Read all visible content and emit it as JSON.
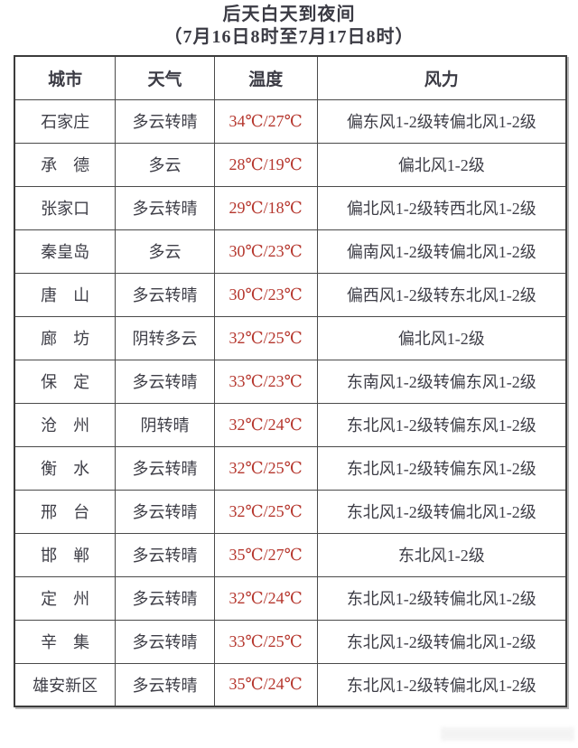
{
  "colors": {
    "temperature": "#b5362d",
    "text": "#3e3e47"
  },
  "chart_data": {
    "type": "table",
    "title": "后天白天到夜间",
    "subtitle": "（7月16日8时至7月17日8时）",
    "columns": [
      "城市",
      "天气",
      "温度",
      "风力"
    ],
    "rows": [
      {
        "city": "石家庄",
        "weather": "多云转晴",
        "temp": "34℃/27℃",
        "wind": "偏东风1-2级转偏北风1-2级"
      },
      {
        "city": "承　德",
        "weather": "多云",
        "temp": "28℃/19℃",
        "wind": "偏北风1-2级"
      },
      {
        "city": "张家口",
        "weather": "多云转晴",
        "temp": "29℃/18℃",
        "wind": "偏北风1-2级转西北风1-2级"
      },
      {
        "city": "秦皇岛",
        "weather": "多云",
        "temp": "30℃/23℃",
        "wind": "偏南风1-2级转偏北风1-2级"
      },
      {
        "city": "唐　山",
        "weather": "多云转晴",
        "temp": "30℃/23℃",
        "wind": "偏西风1-2级转东北风1-2级"
      },
      {
        "city": "廊　坊",
        "weather": "阴转多云",
        "temp": "32℃/25℃",
        "wind": "偏北风1-2级"
      },
      {
        "city": "保　定",
        "weather": "多云转晴",
        "temp": "33℃/23℃",
        "wind": "东南风1-2级转偏东风1-2级"
      },
      {
        "city": "沧　州",
        "weather": "阴转晴",
        "temp": "32℃/24℃",
        "wind": "东北风1-2级转偏东风1-2级"
      },
      {
        "city": "衡　水",
        "weather": "多云转晴",
        "temp": "32℃/25℃",
        "wind": "东北风1-2级转偏东风1-2级"
      },
      {
        "city": "邢　台",
        "weather": "多云转晴",
        "temp": "32℃/25℃",
        "wind": "东北风1-2级转偏北风1-2级"
      },
      {
        "city": "邯　郸",
        "weather": "多云转晴",
        "temp": "35℃/27℃",
        "wind": "东北风1-2级"
      },
      {
        "city": "定　州",
        "weather": "多云转晴",
        "temp": "32℃/24℃",
        "wind": "东北风1-2级转偏北风1-2级"
      },
      {
        "city": "辛　集",
        "weather": "多云转晴",
        "temp": "33℃/25℃",
        "wind": "东北风1-2级转偏北风1-2级"
      },
      {
        "city": "雄安新区",
        "weather": "多云转晴",
        "temp": "35℃/24℃",
        "wind": "东北风1-2级转偏北风1-2级"
      }
    ]
  }
}
